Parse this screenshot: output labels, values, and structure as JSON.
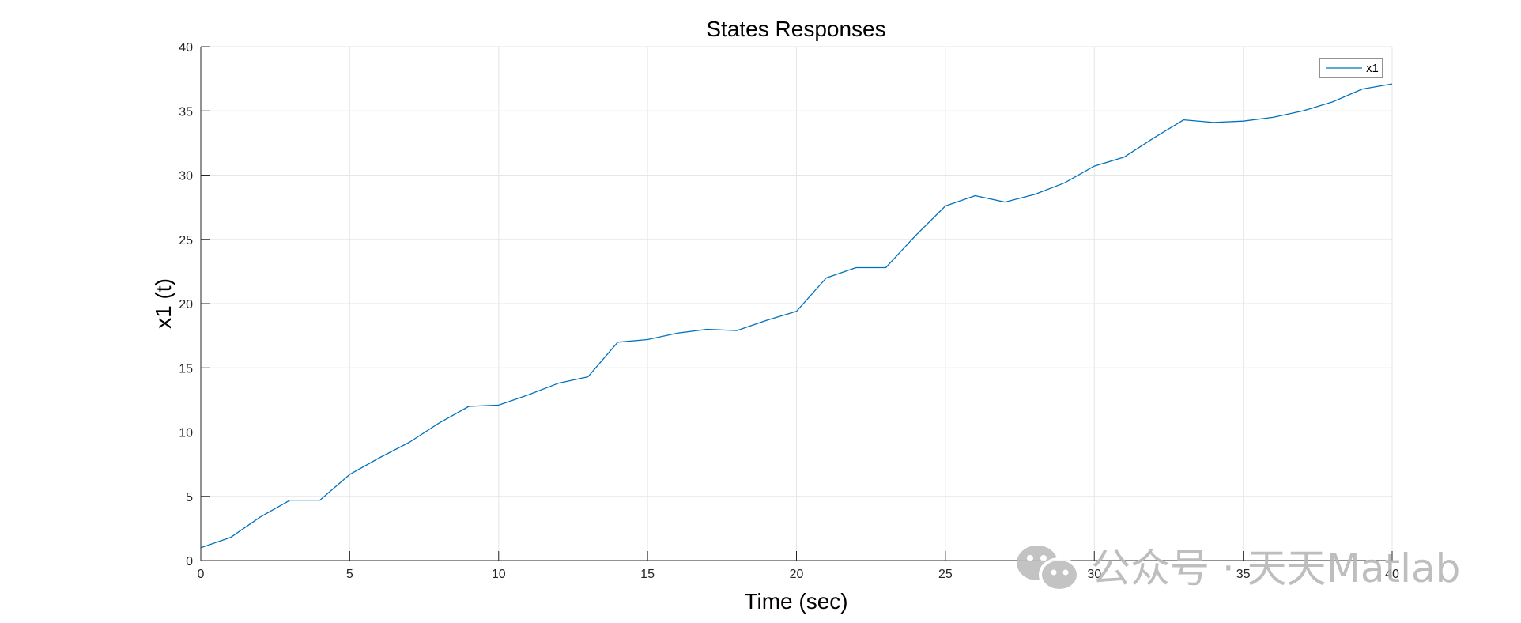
{
  "chart_data": {
    "type": "line",
    "title": "States Responses",
    "xlabel": "Time (sec)",
    "ylabel": "x1 (t)",
    "xlim": [
      0,
      40
    ],
    "ylim": [
      0,
      40
    ],
    "xticks": [
      0,
      5,
      10,
      15,
      20,
      25,
      30,
      35,
      40
    ],
    "yticks": [
      0,
      5,
      10,
      15,
      20,
      25,
      30,
      35,
      40
    ],
    "grid": true,
    "legend_position": "top-right",
    "series": [
      {
        "name": "x1",
        "color": "#0072BD",
        "x": [
          0,
          1,
          2,
          3,
          4,
          5,
          6,
          7,
          8,
          9,
          10,
          11,
          12,
          13,
          14,
          15,
          16,
          17,
          18,
          19,
          20,
          21,
          22,
          23,
          24,
          25,
          26,
          27,
          28,
          29,
          30,
          31,
          32,
          33,
          34,
          35,
          36,
          37,
          38,
          39,
          40
        ],
        "y": [
          1.0,
          1.8,
          3.4,
          4.7,
          4.7,
          6.7,
          8.0,
          9.2,
          10.7,
          12.0,
          12.1,
          12.9,
          13.8,
          14.3,
          17.0,
          17.2,
          17.7,
          18.0,
          17.9,
          18.7,
          19.4,
          22.0,
          22.8,
          22.8,
          25.3,
          27.6,
          28.4,
          27.9,
          28.5,
          29.4,
          30.7,
          31.4,
          32.9,
          34.3,
          34.1,
          34.2,
          34.5,
          35.0,
          35.7,
          36.7,
          37.1
        ]
      }
    ]
  },
  "watermark": {
    "text": "公众号 · 天天Matlab",
    "icon": "wechat-icon"
  }
}
